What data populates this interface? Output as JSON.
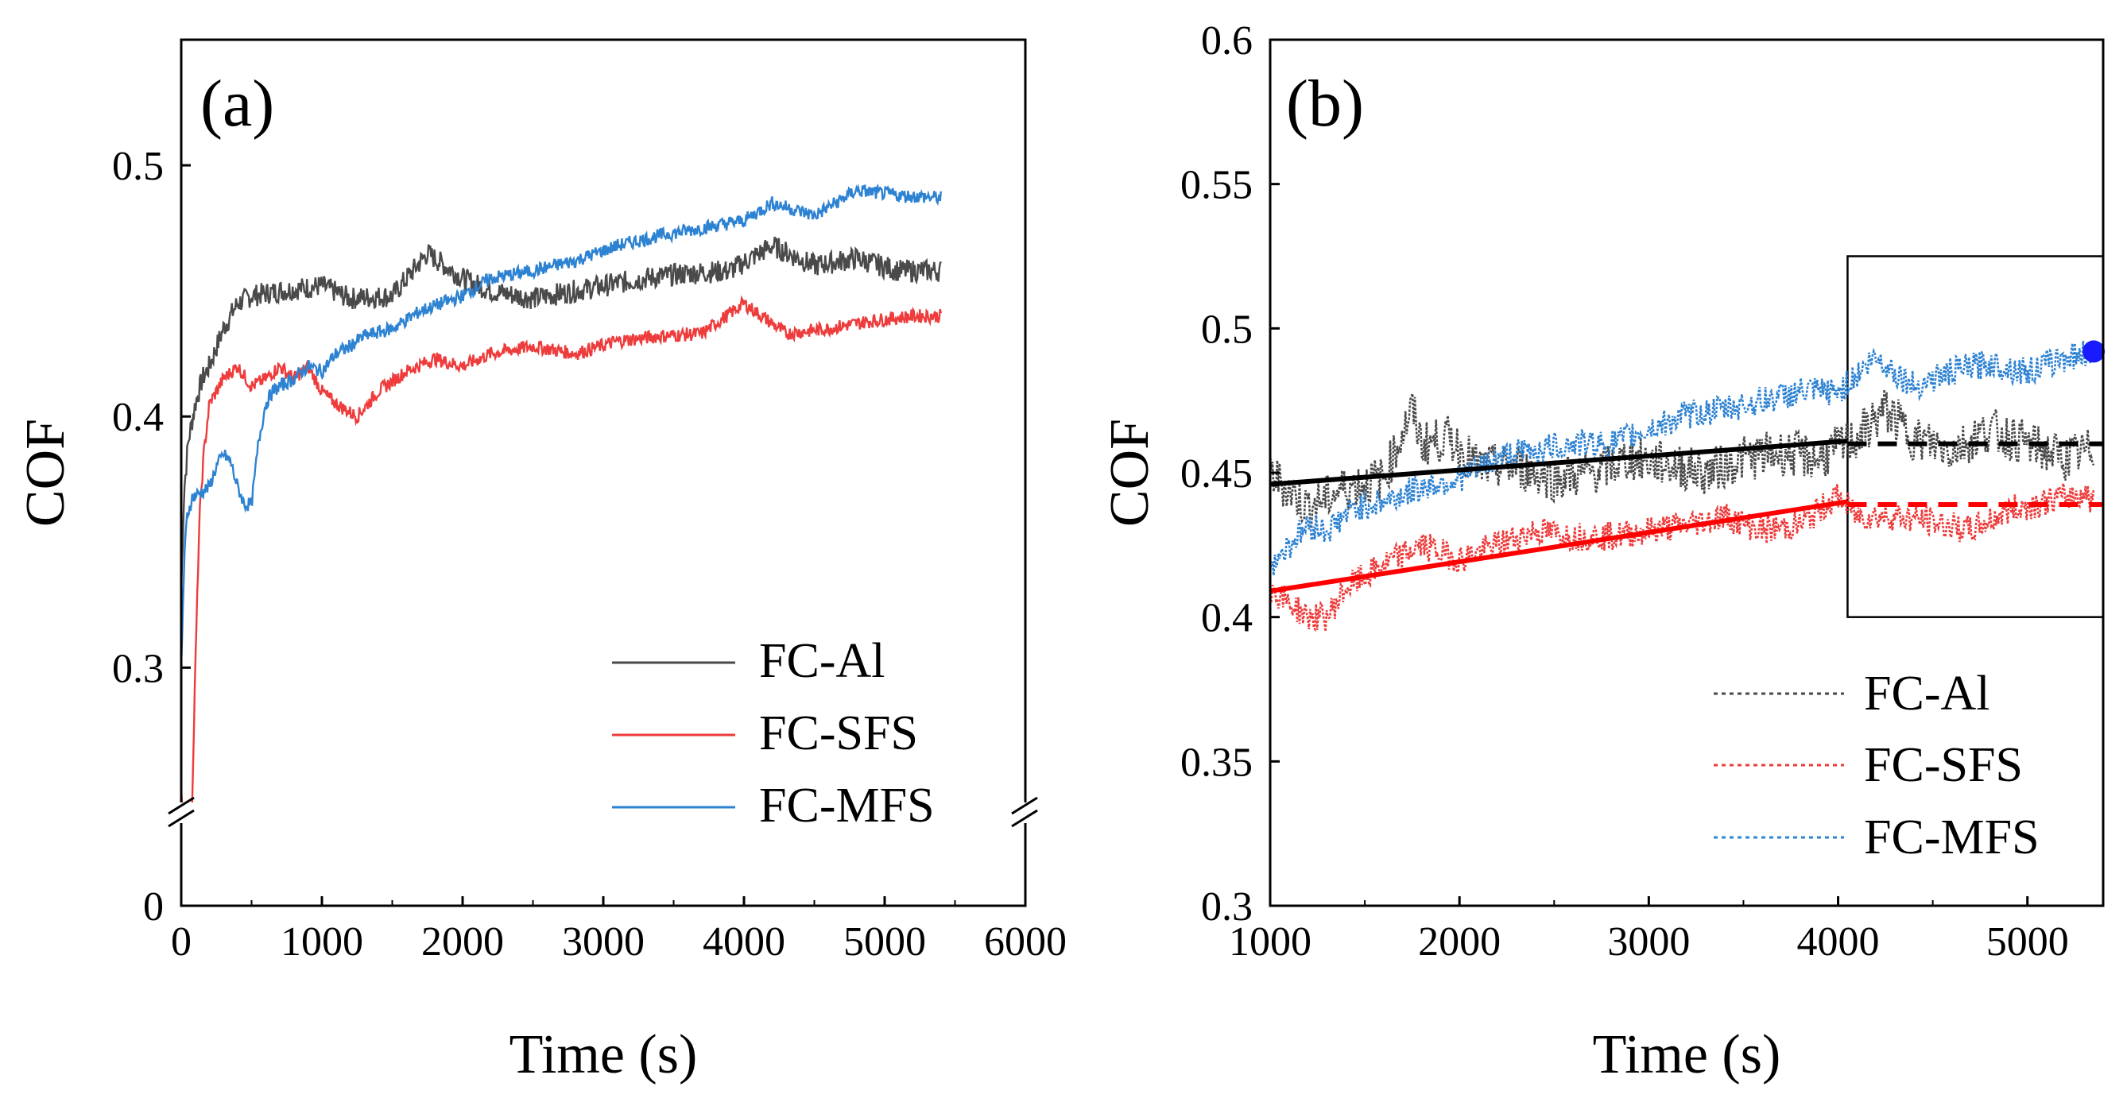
{
  "chart_data": [
    {
      "panel_label": "(a)",
      "type": "line",
      "xlabel": "Time (s)",
      "ylabel": "COF",
      "xlim": [
        0,
        6000
      ],
      "ylim": [
        0,
        0.55
      ],
      "axis_break": [
        0.01,
        0.24
      ],
      "x_ticks": [
        "0",
        "1000",
        "2000",
        "3000",
        "4000",
        "5000",
        "6000"
      ],
      "y_ticks": [
        "0",
        "0.3",
        "0.4",
        "0.5"
      ],
      "legend_position": "bottom-right",
      "series": [
        {
          "name": "FC-Al",
          "color": "#4a4a4a",
          "x": [
            0,
            20,
            50,
            100,
            150,
            200,
            300,
            400,
            500,
            700,
            1000,
            1200,
            1500,
            1750,
            2000,
            2200,
            2500,
            2800,
            3000,
            3300,
            3600,
            3900,
            4200,
            4500,
            4800,
            5100,
            5400
          ],
          "y": [
            0.33,
            0.37,
            0.39,
            0.405,
            0.415,
            0.42,
            0.435,
            0.445,
            0.448,
            0.45,
            0.452,
            0.447,
            0.448,
            0.465,
            0.455,
            0.45,
            0.447,
            0.45,
            0.452,
            0.455,
            0.457,
            0.458,
            0.468,
            0.46,
            0.463,
            0.458,
            0.458
          ]
        },
        {
          "name": "FC-SFS",
          "color": "#ee3b3b",
          "x": [
            0,
            30,
            60,
            80,
            100,
            130,
            160,
            200,
            300,
            400,
            500,
            600,
            700,
            800,
            900,
            1000,
            1100,
            1250,
            1400,
            1600,
            1800,
            2000,
            2200,
            2500,
            2800,
            3100,
            3400,
            3700,
            4000,
            4300,
            4600,
            4900,
            5200,
            5400
          ],
          "y": [
            0.25,
            0.24,
            0.235,
            0.25,
            0.3,
            0.36,
            0.385,
            0.405,
            0.415,
            0.42,
            0.412,
            0.415,
            0.42,
            0.415,
            0.42,
            0.41,
            0.405,
            0.4,
            0.41,
            0.418,
            0.423,
            0.42,
            0.425,
            0.428,
            0.425,
            0.43,
            0.432,
            0.433,
            0.445,
            0.433,
            0.435,
            0.438,
            0.44,
            0.44
          ]
        },
        {
          "name": "FC-MFS",
          "color": "#2d82d2",
          "x": [
            0,
            20,
            40,
            80,
            150,
            200,
            250,
            300,
            350,
            400,
            450,
            500,
            550,
            600,
            650,
            700,
            800,
            900,
            1000,
            1100,
            1200,
            1300,
            1500,
            1700,
            2000,
            2200,
            2500,
            2800,
            3100,
            3400,
            3700,
            4000,
            4200,
            4500,
            4800,
            5100,
            5400
          ],
          "y": [
            0.3,
            0.34,
            0.36,
            0.368,
            0.37,
            0.372,
            0.38,
            0.385,
            0.382,
            0.372,
            0.365,
            0.365,
            0.39,
            0.405,
            0.41,
            0.412,
            0.415,
            0.42,
            0.418,
            0.425,
            0.428,
            0.432,
            0.435,
            0.442,
            0.448,
            0.455,
            0.458,
            0.462,
            0.468,
            0.472,
            0.475,
            0.478,
            0.485,
            0.48,
            0.49,
            0.488,
            0.487
          ]
        }
      ]
    },
    {
      "panel_label": "(b)",
      "type": "line",
      "xlabel": "Time (s)",
      "ylabel": "COF",
      "xlim": [
        1000,
        5400
      ],
      "ylim": [
        0.3,
        0.6
      ],
      "x_ticks": [
        "1000",
        "2000",
        "3000",
        "4000",
        "5000"
      ],
      "y_ticks": [
        "0.3",
        "0.35",
        "0.4",
        "0.45",
        "0.5",
        "0.55",
        "0.6"
      ],
      "legend_position": "bottom-right",
      "series": [
        {
          "name": "FC-Al",
          "color": "#4a4a4a",
          "x": [
            1000,
            1200,
            1400,
            1600,
            1750,
            1800,
            1950,
            2100,
            2300,
            2500,
            2700,
            2900,
            3100,
            3300,
            3500,
            3700,
            3900,
            4100,
            4250,
            4400,
            4600,
            4800,
            5000,
            5200,
            5350
          ],
          "y": [
            0.45,
            0.438,
            0.445,
            0.448,
            0.472,
            0.46,
            0.462,
            0.452,
            0.452,
            0.448,
            0.45,
            0.455,
            0.453,
            0.45,
            0.455,
            0.457,
            0.455,
            0.462,
            0.472,
            0.462,
            0.458,
            0.465,
            0.46,
            0.455,
            0.458
          ]
        },
        {
          "name": "FC-SFS",
          "color": "#ee3b3b",
          "x": [
            1000,
            1100,
            1200,
            1300,
            1400,
            1600,
            1800,
            2000,
            2200,
            2400,
            2600,
            2800,
            3000,
            3200,
            3400,
            3600,
            3800,
            4000,
            4100,
            4300,
            4500,
            4700,
            4900,
            5100,
            5300,
            5350
          ],
          "y": [
            0.41,
            0.405,
            0.4,
            0.4,
            0.41,
            0.418,
            0.425,
            0.42,
            0.425,
            0.43,
            0.428,
            0.428,
            0.43,
            0.432,
            0.435,
            0.43,
            0.432,
            0.442,
            0.435,
            0.435,
            0.433,
            0.43,
            0.437,
            0.44,
            0.443,
            0.44
          ]
        },
        {
          "name": "FC-MFS",
          "color": "#2d82d2",
          "x": [
            1000,
            1100,
            1200,
            1300,
            1450,
            1600,
            1800,
            2000,
            2200,
            2400,
            2600,
            2800,
            3000,
            3200,
            3400,
            3600,
            3800,
            4000,
            4200,
            4400,
            4600,
            4800,
            5000,
            5200,
            5350
          ],
          "y": [
            0.418,
            0.425,
            0.432,
            0.43,
            0.438,
            0.44,
            0.445,
            0.448,
            0.455,
            0.458,
            0.46,
            0.46,
            0.465,
            0.47,
            0.472,
            0.475,
            0.478,
            0.478,
            0.49,
            0.48,
            0.485,
            0.488,
            0.485,
            0.49,
            0.492
          ]
        }
      ],
      "trend_lines": [
        {
          "series": "FC-Al",
          "color": "#000000",
          "solid": [
            [
              1000,
              0.446
            ],
            [
              4050,
              0.461
            ]
          ],
          "dashed": [
            [
              4050,
              0.46
            ],
            [
              5400,
              0.46
            ]
          ]
        },
        {
          "series": "FC-SFS",
          "color": "#ff0000",
          "solid": [
            [
              1000,
              0.409
            ],
            [
              4050,
              0.44
            ]
          ],
          "dashed": [
            [
              4050,
              0.439
            ],
            [
              5400,
              0.439
            ]
          ]
        }
      ],
      "highlight_box": {
        "x": [
          4050,
          5400
        ],
        "y": [
          0.4,
          0.525
        ]
      },
      "marker": {
        "series": "FC-MFS",
        "x": 5350,
        "y": 0.492,
        "color": "#1a1aff"
      }
    }
  ]
}
